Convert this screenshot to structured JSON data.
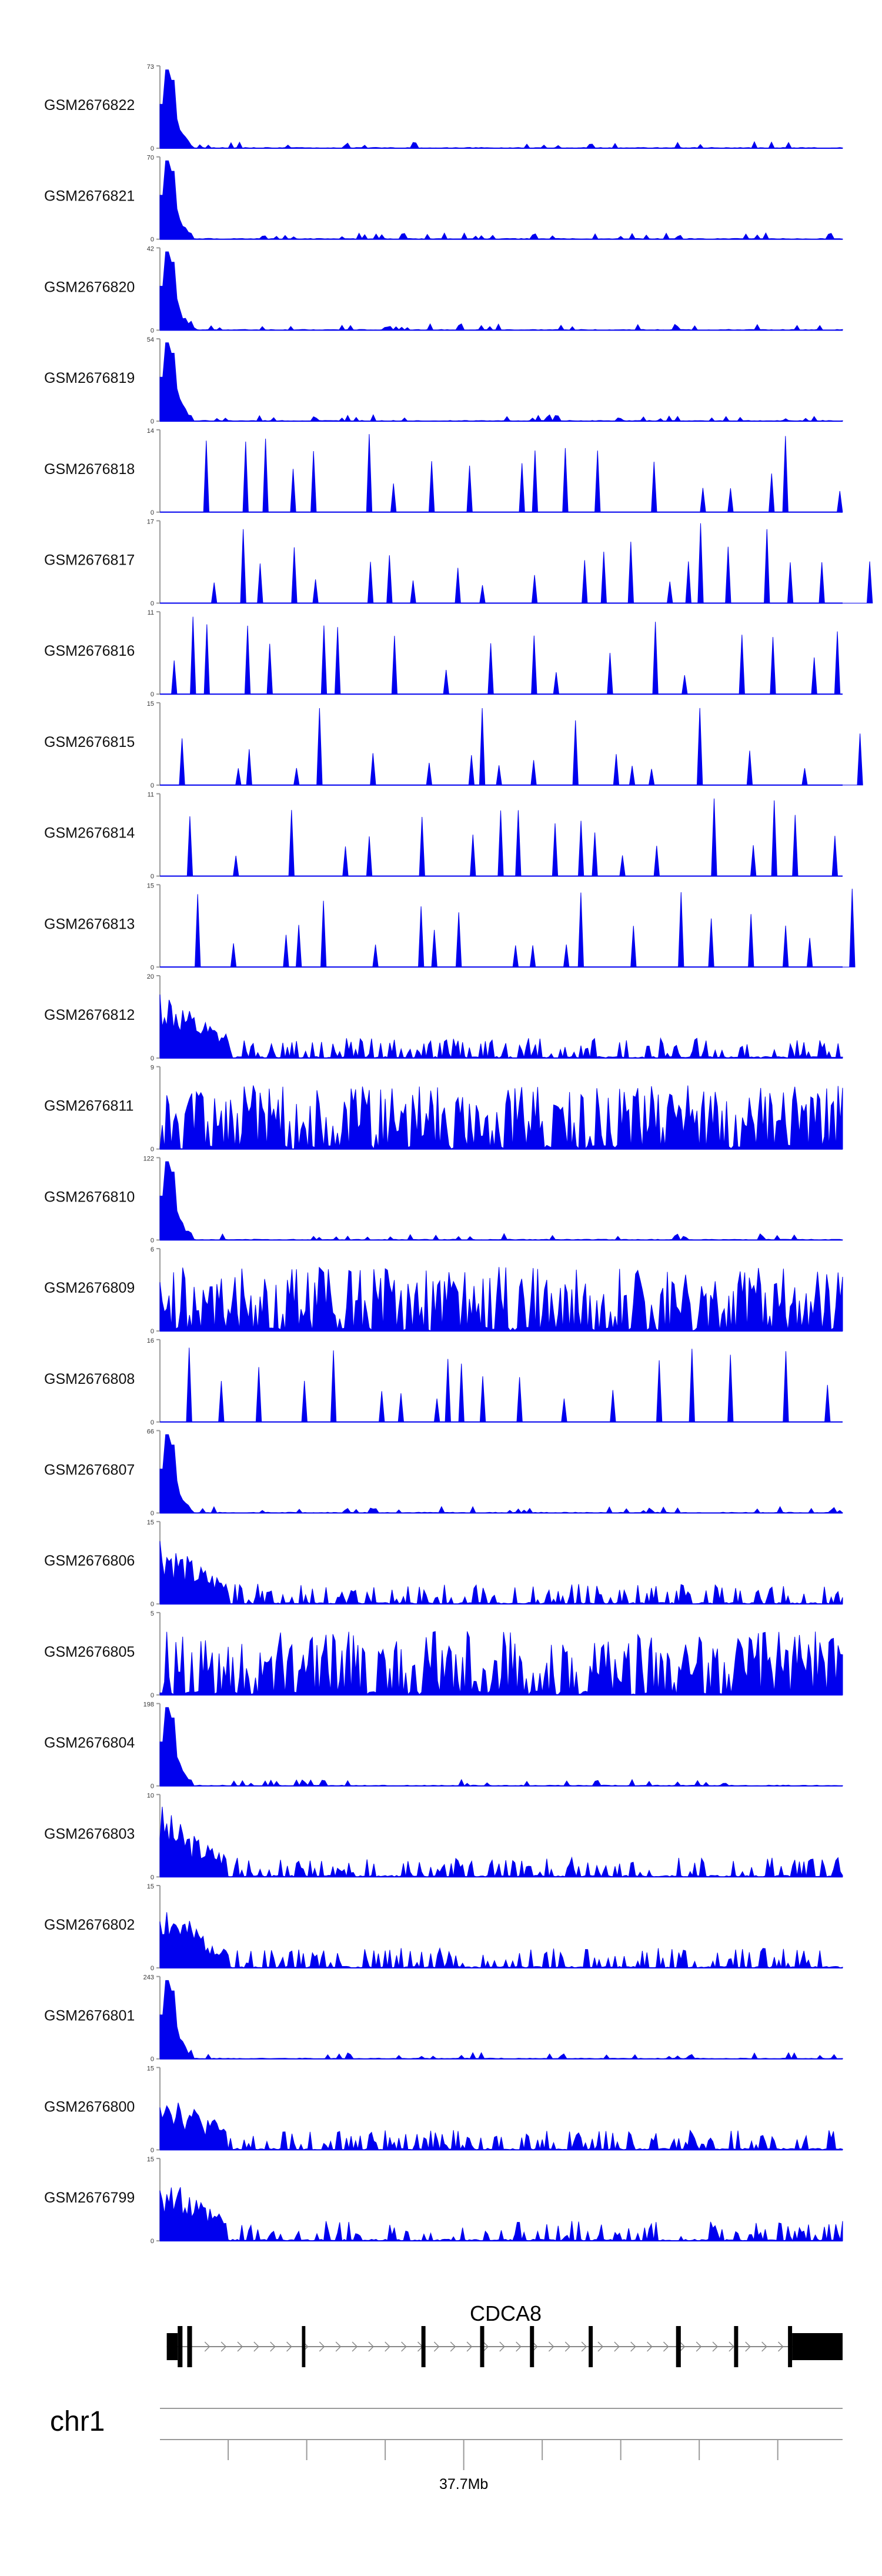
{
  "colors": {
    "signal": "#0000ee",
    "axis": "#9a9a9a",
    "text": "#111111",
    "gene": "#000000"
  },
  "chart_data": {
    "type": "area",
    "title": "",
    "x_domain": [
      0,
      100
    ],
    "series": [
      {
        "name": "GSM2676822",
        "ymax": "73",
        "ymin": "0",
        "pattern": "spike",
        "seed": 22
      },
      {
        "name": "GSM2676821",
        "ymax": "70",
        "ymin": "0",
        "pattern": "spike",
        "seed": 21
      },
      {
        "name": "GSM2676820",
        "ymax": "42",
        "ymin": "0",
        "pattern": "spike",
        "seed": 20
      },
      {
        "name": "GSM2676819",
        "ymax": "54",
        "ymin": "0",
        "pattern": "spike",
        "seed": 19
      },
      {
        "name": "GSM2676818",
        "ymax": "14",
        "ymin": "0",
        "pattern": "sparse",
        "seed": 18
      },
      {
        "name": "GSM2676817",
        "ymax": "17",
        "ymin": "0",
        "pattern": "sparse",
        "seed": 17
      },
      {
        "name": "GSM2676816",
        "ymax": "11",
        "ymin": "0",
        "pattern": "sparse",
        "seed": 16
      },
      {
        "name": "GSM2676815",
        "ymax": "15",
        "ymin": "0",
        "pattern": "sparse",
        "seed": 15
      },
      {
        "name": "GSM2676814",
        "ymax": "11",
        "ymin": "0",
        "pattern": "sparse",
        "seed": 14
      },
      {
        "name": "GSM2676813",
        "ymax": "15",
        "ymin": "0",
        "pattern": "sparse",
        "seed": 13
      },
      {
        "name": "GSM2676812",
        "ymax": "20",
        "ymin": "0",
        "pattern": "medium",
        "seed": 12
      },
      {
        "name": "GSM2676811",
        "ymax": "9",
        "ymin": "0",
        "pattern": "dense",
        "seed": 11
      },
      {
        "name": "GSM2676810",
        "ymax": "122",
        "ymin": "0",
        "pattern": "spike",
        "seed": 10
      },
      {
        "name": "GSM2676809",
        "ymax": "6",
        "ymin": "0",
        "pattern": "dense",
        "seed": 9
      },
      {
        "name": "GSM2676808",
        "ymax": "16",
        "ymin": "0",
        "pattern": "sparse",
        "seed": 8
      },
      {
        "name": "GSM2676807",
        "ymax": "66",
        "ymin": "0",
        "pattern": "spike",
        "seed": 7
      },
      {
        "name": "GSM2676806",
        "ymax": "15",
        "ymin": "0",
        "pattern": "medium",
        "seed": 6
      },
      {
        "name": "GSM2676805",
        "ymax": "5",
        "ymin": "0",
        "pattern": "dense",
        "seed": 5
      },
      {
        "name": "GSM2676804",
        "ymax": "198",
        "ymin": "0",
        "pattern": "spike",
        "seed": 4
      },
      {
        "name": "GSM2676803",
        "ymax": "10",
        "ymin": "0",
        "pattern": "medium",
        "seed": 3
      },
      {
        "name": "GSM2676802",
        "ymax": "15",
        "ymin": "0",
        "pattern": "medium",
        "seed": 2
      },
      {
        "name": "GSM2676801",
        "ymax": "243",
        "ymin": "0",
        "pattern": "spike",
        "seed": 1
      },
      {
        "name": "GSM2676800",
        "ymax": "15",
        "ymin": "0",
        "pattern": "medium",
        "seed": 100
      },
      {
        "name": "GSM2676799",
        "ymax": "15",
        "ymin": "0",
        "pattern": "medium",
        "seed": 99
      }
    ],
    "gene": {
      "name": "CDCA8",
      "strand": "+",
      "exons": [
        {
          "start": 1.0,
          "end": 2.6,
          "type": "utr"
        },
        {
          "start": 2.6,
          "end": 3.3,
          "type": "cds"
        },
        {
          "start": 4.0,
          "end": 4.7,
          "type": "cds"
        },
        {
          "start": 20.8,
          "end": 21.3,
          "type": "cds"
        },
        {
          "start": 38.3,
          "end": 38.9,
          "type": "cds"
        },
        {
          "start": 46.9,
          "end": 47.5,
          "type": "cds"
        },
        {
          "start": 54.2,
          "end": 54.8,
          "type": "cds"
        },
        {
          "start": 62.8,
          "end": 63.4,
          "type": "cds"
        },
        {
          "start": 75.6,
          "end": 76.3,
          "type": "cds"
        },
        {
          "start": 84.1,
          "end": 84.7,
          "type": "cds"
        },
        {
          "start": 92.0,
          "end": 92.6,
          "type": "cds"
        },
        {
          "start": 92.6,
          "end": 100.0,
          "type": "utr"
        }
      ]
    },
    "genome_axis": {
      "chromosome": "chr1",
      "tick_label": "37.7Mb",
      "tick_label_position": 44.5,
      "tick_positions": [
        10,
        21.5,
        33,
        44.5,
        56,
        67.5,
        79,
        90.5
      ]
    }
  }
}
